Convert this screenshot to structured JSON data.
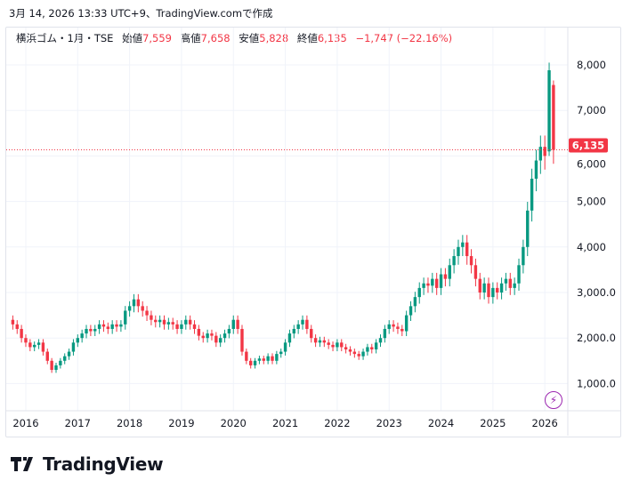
{
  "caption": "3月 14, 2026 13:33 UTC+9、TradingView.comで作成",
  "legend": {
    "symbol": "横浜ゴム・1月・TSE",
    "open_label": "始値",
    "open": "7,559",
    "high_label": "高値",
    "high": "7,658",
    "low_label": "安値",
    "low": "5,828",
    "close_label": "終値",
    "close": "6,135",
    "change": "−1,747 (−22.16%)"
  },
  "brand": "TradingView",
  "colors": {
    "up": "#089981",
    "down": "#f23645",
    "grid": "#f0f3fa"
  },
  "chart_data": {
    "type": "candlestick",
    "interval": "monthly",
    "start": "2015-10",
    "closes": [
      2300,
      2200,
      2000,
      1900,
      1800,
      1850,
      1900,
      1700,
      1500,
      1300,
      1400,
      1500,
      1600,
      1700,
      1900,
      2000,
      2100,
      2200,
      2150,
      2200,
      2300,
      2250,
      2200,
      2300,
      2250,
      2300,
      2600,
      2700,
      2850,
      2700,
      2600,
      2500,
      2400,
      2350,
      2400,
      2300,
      2350,
      2300,
      2200,
      2300,
      2400,
      2300,
      2200,
      2050,
      2000,
      2100,
      2050,
      1900,
      2000,
      2100,
      2200,
      2400,
      2200,
      1700,
      1500,
      1400,
      1500,
      1550,
      1500,
      1600,
      1500,
      1650,
      1700,
      1900,
      2100,
      2200,
      2300,
      2400,
      2200,
      2000,
      1900,
      1950,
      1900,
      1850,
      1800,
      1900,
      1800,
      1750,
      1700,
      1650,
      1600,
      1700,
      1800,
      1750,
      1900,
      2000,
      2200,
      2300,
      2250,
      2200,
      2150,
      2500,
      2700,
      2900,
      3100,
      3200,
      3150,
      3300,
      3100,
      3400,
      3300,
      3600,
      3800,
      4000,
      4100,
      3800,
      3600,
      3300,
      3000,
      3200,
      2900,
      3100,
      3000,
      3200,
      3300,
      3100,
      3200,
      3600,
      4000,
      4800,
      5500,
      5900,
      6200,
      6000,
      7882,
      6135
    ],
    "last_candle": {
      "open": 7559,
      "high": 7658,
      "low": 5828,
      "close": 6135
    },
    "current_price_label": "6,135",
    "y_ticks": [
      {
        "v": 8000,
        "label": "8,000"
      },
      {
        "v": 7000,
        "label": "7,000"
      },
      {
        "v": 6000,
        "label": "6,000"
      },
      {
        "v": 5000,
        "label": "5,000"
      },
      {
        "v": 4000,
        "label": "4,000"
      },
      {
        "v": 3000,
        "label": "3,000.0"
      },
      {
        "v": 2000,
        "label": "2,000.0"
      },
      {
        "v": 1000,
        "label": "1,000.0"
      }
    ],
    "x_ticks": [
      "2016",
      "2017",
      "2018",
      "2019",
      "2020",
      "2021",
      "2022",
      "2023",
      "2024",
      "2025",
      "2026"
    ]
  }
}
